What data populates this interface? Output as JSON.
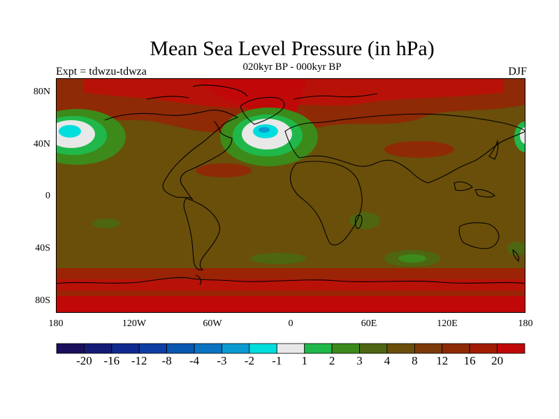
{
  "title": "Mean Sea Level Pressure (in hPa)",
  "subtitle": "020kyr BP - 000kyr BP",
  "left_label": "Expt = tdwzu-tdwza",
  "right_label": "DJF",
  "map": {
    "projection": "cylindrical equidistant",
    "lon_range": [
      -180,
      180
    ],
    "lat_range": [
      -90,
      90
    ],
    "lat_ticks": [
      "80N",
      "40N",
      "0",
      "40S",
      "80S"
    ],
    "lon_ticks": [
      "180",
      "120W",
      "60W",
      "0",
      "60E",
      "120E",
      "180"
    ],
    "background_level": "4 to 8",
    "features": [
      {
        "name": "North Pacific low anomaly",
        "lon": -160,
        "lat": 48,
        "level": "-3 to -1"
      },
      {
        "name": "North Atlantic low anomaly",
        "lon": -20,
        "lat": 48,
        "level": "-3 to -1"
      },
      {
        "name": "Arctic high anomaly",
        "lon": -45,
        "lat": 75,
        "level": "above 20"
      },
      {
        "name": "Southern Ocean high band",
        "lon": 0,
        "lat": -75,
        "level": "12 to 20"
      }
    ]
  },
  "colorbar": {
    "colors": [
      "#1a0f5c",
      "#141b75",
      "#0f2a8f",
      "#0d3ea3",
      "#0a57b0",
      "#0a73c2",
      "#0a9ad0",
      "#00dede",
      "#e8e8e8",
      "#20b84a",
      "#3c8a1a",
      "#4e6611",
      "#6a4f0a",
      "#7c3a08",
      "#8e2a06",
      "#a21c04",
      "#c00808"
    ],
    "labels": [
      "-20",
      "-16",
      "-12",
      "-8",
      "-4",
      "-3",
      "-2",
      "-1",
      "1",
      "2",
      "3",
      "4",
      "8",
      "12",
      "16",
      "20"
    ]
  }
}
